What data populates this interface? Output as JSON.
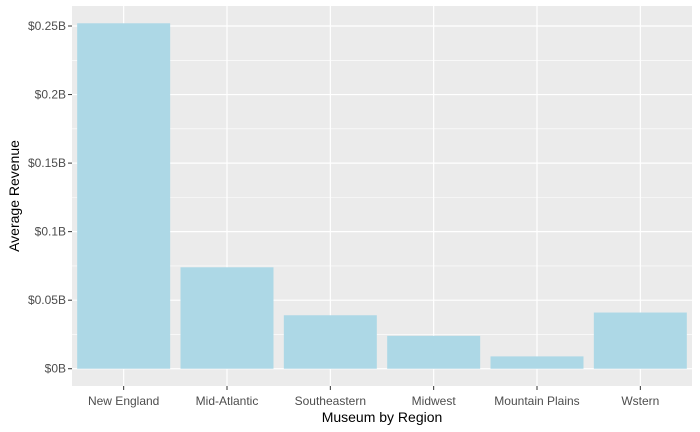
{
  "chart_data": {
    "type": "bar",
    "title": "",
    "xlabel": "Museum by Region",
    "ylabel": "Average Revenue",
    "categories": [
      "New England",
      "Mid-Atlantic",
      "Southeastern",
      "Midwest",
      "Mountain Plains",
      "Wstern"
    ],
    "values": [
      0.252,
      0.074,
      0.039,
      0.024,
      0.009,
      0.041
    ],
    "y_tick_values": [
      0,
      0.05,
      0.1,
      0.15,
      0.2,
      0.25
    ],
    "y_tick_labels": [
      "$0B",
      "$0.05B",
      "$0.1B",
      "$0.15B",
      "$0.2B",
      "$0.25B"
    ],
    "ylim": [
      -0.0126,
      0.2646
    ],
    "grid": true,
    "bar_color": "#add8e6",
    "panel_background": "#ebebeb",
    "grid_color": "#ffffff"
  }
}
